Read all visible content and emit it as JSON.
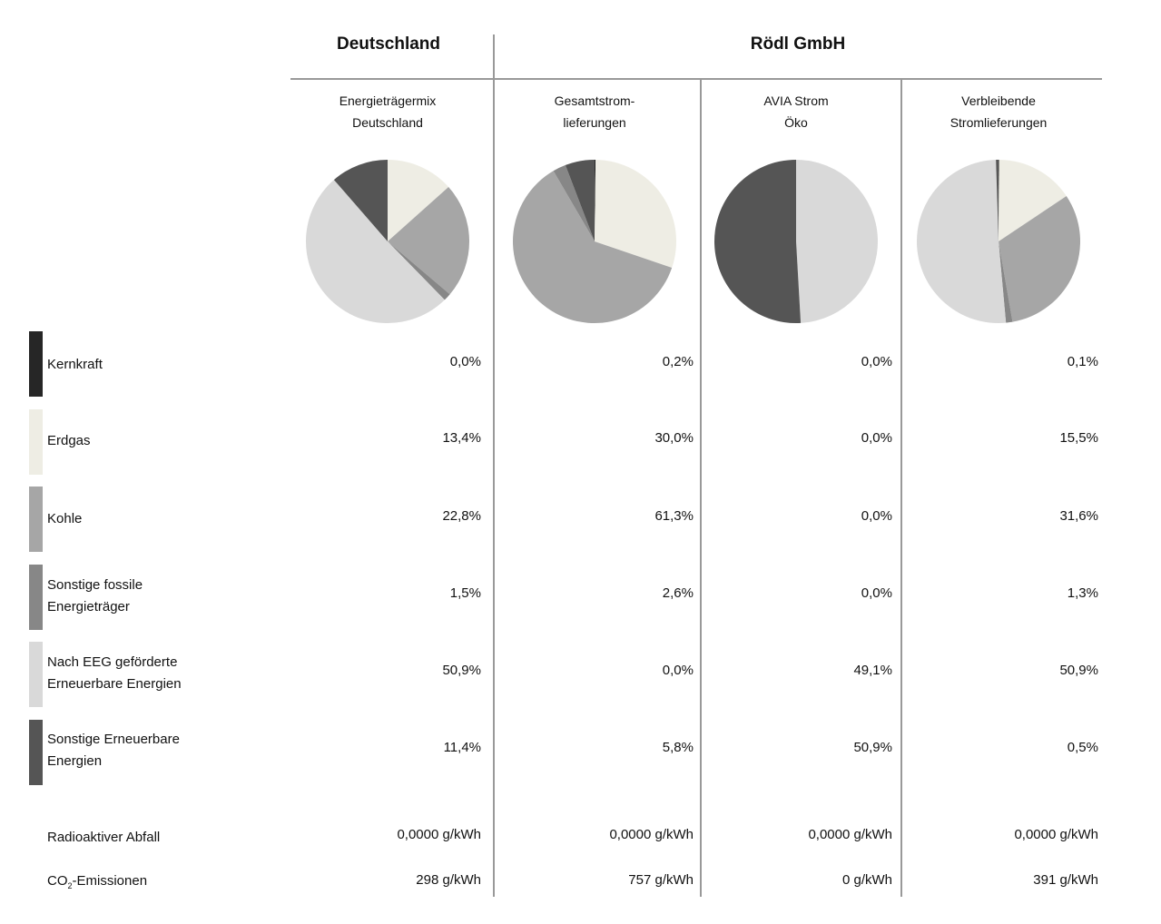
{
  "headers": {
    "left": "Deutschland",
    "right": "Rödl GmbH"
  },
  "chart_data": {
    "type": "pie",
    "categories": [
      "Kernkraft",
      "Erdgas",
      "Kohle",
      "Sonstige fossile Energieträger",
      "Nach EEG geförderte Erneuerbare Energien",
      "Sonstige Erneuerbare Energien"
    ],
    "colors": [
      "#262626",
      "#eeede4",
      "#a6a6a6",
      "#878787",
      "#d9d9d9",
      "#555555"
    ],
    "series": [
      {
        "name": "Energieträgermix Deutschland",
        "values": [
          0.0,
          13.4,
          22.8,
          1.5,
          50.9,
          11.4
        ],
        "labels": [
          "0,0%",
          "13,4%",
          "22,8%",
          "1,5%",
          "50,9%",
          "11,4%"
        ],
        "radioactive": "0,0000 g/kWh",
        "co2": "298 g/kWh"
      },
      {
        "name": "Gesamtstrom-lieferungen",
        "values": [
          0.2,
          30.0,
          61.3,
          2.6,
          0.0,
          5.8
        ],
        "labels": [
          "0,2%",
          "30,0%",
          "61,3%",
          "2,6%",
          "0,0%",
          "5,8%"
        ],
        "radioactive": "0,0000 g/kWh",
        "co2": "757 g/kWh"
      },
      {
        "name": "AVIA Strom Öko",
        "values": [
          0.0,
          0.0,
          0.0,
          0.0,
          49.1,
          50.9
        ],
        "labels": [
          "0,0%",
          "0,0%",
          "0,0%",
          "0,0%",
          "49,1%",
          "50,9%"
        ],
        "radioactive": "0,0000 g/kWh",
        "co2": "0 g/kWh"
      },
      {
        "name": "Verbleibende Stromlieferungen",
        "values": [
          0.1,
          15.5,
          31.6,
          1.3,
          50.9,
          0.5
        ],
        "labels": [
          "0,1%",
          "15,5%",
          "31,6%",
          "1,3%",
          "50,9%",
          "0,5%"
        ],
        "radioactive": "0,0000 g/kWh",
        "co2": "391 g/kWh"
      }
    ],
    "series_titles": [
      [
        "Energieträgermix",
        "Deutschland"
      ],
      [
        "Gesamtstrom-",
        "lieferungen"
      ],
      [
        "AVIA Strom",
        "Öko"
      ],
      [
        "Verbleibende",
        "Stromlieferungen"
      ]
    ],
    "legend_lines": [
      [
        "Kernkraft"
      ],
      [
        "Erdgas"
      ],
      [
        "Kohle"
      ],
      [
        "Sonstige fossile",
        "Energieträger"
      ],
      [
        "Nach EEG geförderte",
        "Erneuerbare Energien"
      ],
      [
        "Sonstige Erneuerbare",
        "Energien"
      ]
    ]
  },
  "extra_rows": {
    "radioactive": "Radioaktiver Abfall",
    "co2_prefix": "CO",
    "co2_sub": "2",
    "co2_suffix": "-Emissionen"
  }
}
